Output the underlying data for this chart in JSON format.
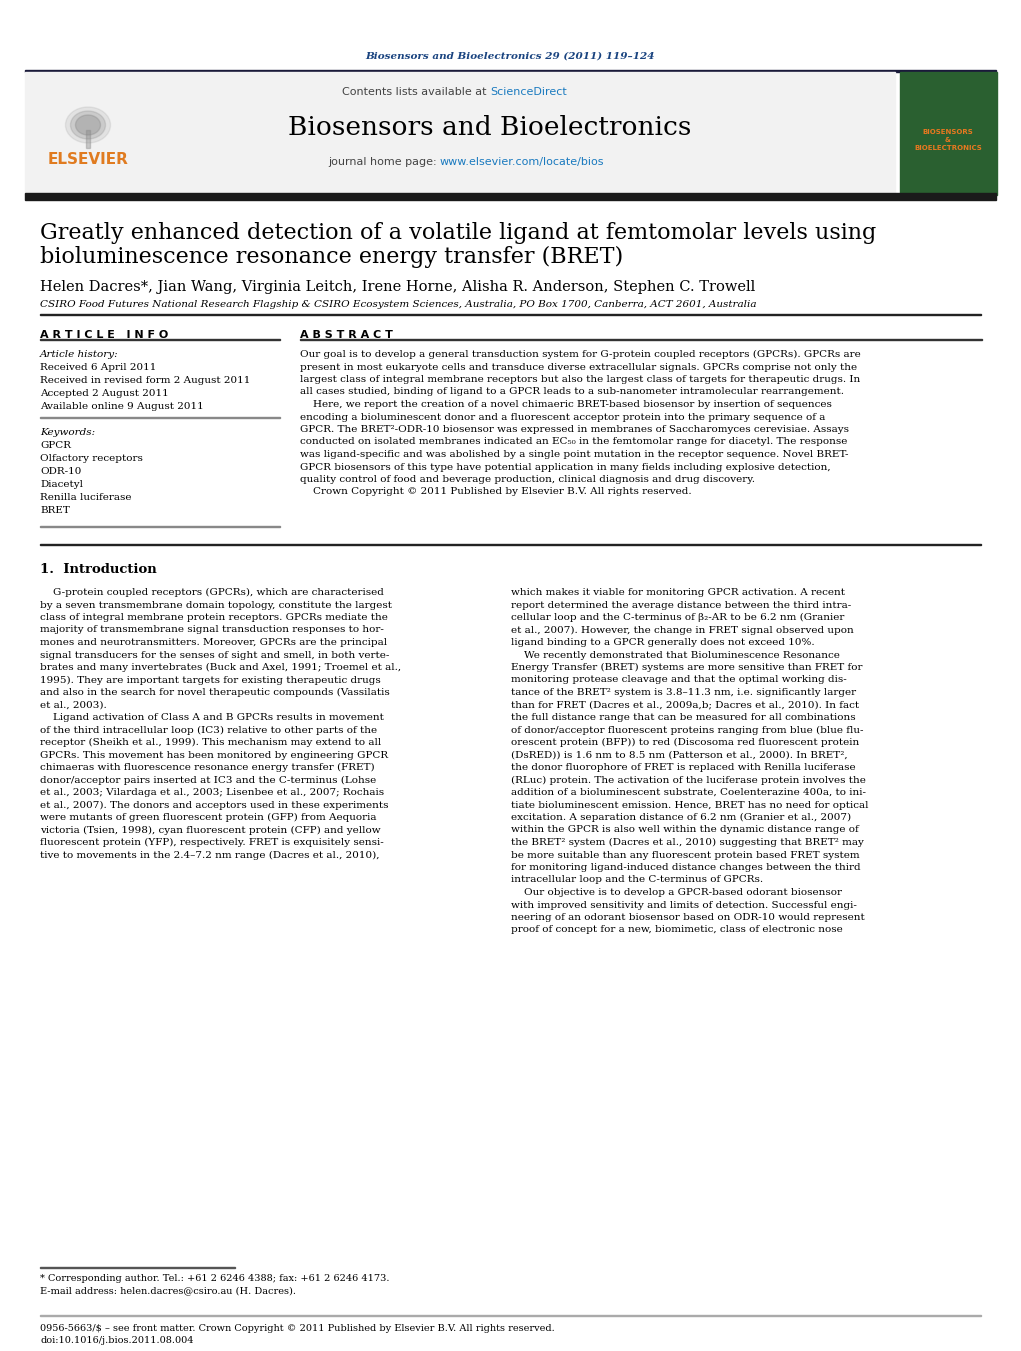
{
  "journal_ref": "Biosensors and Bioelectronics 29 (2011) 119–124",
  "journal_name": "Biosensors and Bioelectronics",
  "contents_text": "Contents lists available at ScienceDirect",
  "title_line1": "Greatly enhanced detection of a volatile ligand at femtomolar levels using",
  "title_line2": "bioluminescence resonance energy transfer (BRET)",
  "authors": "Helen Dacres*, Jian Wang, Virginia Leitch, Irene Horne, Alisha R. Anderson, Stephen C. Trowell",
  "affiliation": "CSIRO Food Futures National Research Flagship & CSIRO Ecosystem Sciences, Australia, PO Box 1700, Canberra, ACT 2601, Australia",
  "article_info_header": "A R T I C L E   I N F O",
  "abstract_header": "A B S T R A C T",
  "article_history_label": "Article history:",
  "received": "Received 6 April 2011",
  "received_revised": "Received in revised form 2 August 2011",
  "accepted": "Accepted 2 August 2011",
  "available_online": "Available online 9 August 2011",
  "keywords_label": "Keywords:",
  "keywords": [
    "GPCR",
    "Olfactory receptors",
    "ODR-10",
    "Diacetyl",
    "Renilla luciferase",
    "BRET"
  ],
  "section1_title": "1.  Introduction",
  "footnote1": "* Corresponding author. Tel.: +61 2 6246 4388; fax: +61 2 6246 4173.",
  "footnote2": "E-mail address: helen.dacres@csiro.au (H. Dacres).",
  "footer1": "0956-5663/$ – see front matter. Crown Copyright © 2011 Published by Elsevier B.V. All rights reserved.",
  "footer2": "doi:10.1016/j.bios.2011.08.004",
  "bg_color": "#ffffff",
  "journal_ref_color": "#1a4480",
  "elsevier_color": "#e07b20",
  "sciencedirect_color": "#1a7abf",
  "link_color": "#1a7abf",
  "abstract_lines": [
    "Our goal is to develop a general transduction system for G-protein coupled receptors (GPCRs). GPCRs are",
    "present in most eukaryote cells and transduce diverse extracellular signals. GPCRs comprise not only the",
    "largest class of integral membrane receptors but also the largest class of targets for therapeutic drugs. In",
    "all cases studied, binding of ligand to a GPCR leads to a sub-nanometer intramolecular rearrangement.",
    "    Here, we report the creation of a novel chimaeric BRET-based biosensor by insertion of sequences",
    "encoding a bioluminescent donor and a fluorescent acceptor protein into the primary sequence of a",
    "GPCR. The BRET²-ODR-10 biosensor was expressed in membranes of Saccharomyces cerevisiae. Assays",
    "conducted on isolated membranes indicated an EC₅₀ in the femtomolar range for diacetyl. The response",
    "was ligand-specific and was abolished by a single point mutation in the receptor sequence. Novel BRET-",
    "GPCR biosensors of this type have potential application in many fields including explosive detection,",
    "quality control of food and beverage production, clinical diagnosis and drug discovery.",
    "    Crown Copyright © 2011 Published by Elsevier B.V. All rights reserved."
  ],
  "intro_left_lines": [
    "    G-protein coupled receptors (GPCRs), which are characterised",
    "by a seven transmembrane domain topology, constitute the largest",
    "class of integral membrane protein receptors. GPCRs mediate the",
    "majority of transmembrane signal transduction responses to hor-",
    "mones and neurotransmitters. Moreover, GPCRs are the principal",
    "signal transducers for the senses of sight and smell, in both verte-",
    "brates and many invertebrates (Buck and Axel, 1991; Troemel et al.,",
    "1995). They are important targets for existing therapeutic drugs",
    "and also in the search for novel therapeutic compounds (Vassilatis",
    "et al., 2003).",
    "    Ligand activation of Class A and B GPCRs results in movement",
    "of the third intracellular loop (IC3) relative to other parts of the",
    "receptor (Sheikh et al., 1999). This mechanism may extend to all",
    "GPCRs. This movement has been monitored by engineering GPCR",
    "chimaeras with fluorescence resonance energy transfer (FRET)",
    "donor/acceptor pairs inserted at IC3 and the C-terminus (Lohse",
    "et al., 2003; Vilardaga et al., 2003; Lisenbee et al., 2007; Rochais",
    "et al., 2007). The donors and acceptors used in these experiments",
    "were mutants of green fluorescent protein (GFP) from Aequoria",
    "victoria (Tsien, 1998), cyan fluorescent protein (CFP) and yellow",
    "fluorescent protein (YFP), respectively. FRET is exquisitely sensi-",
    "tive to movements in the 2.4–7.2 nm range (Dacres et al., 2010),"
  ],
  "intro_right_lines": [
    "which makes it viable for monitoring GPCR activation. A recent",
    "report determined the average distance between the third intra-",
    "cellular loop and the C-terminus of β₂-AR to be 6.2 nm (Granier",
    "et al., 2007). However, the change in FRET signal observed upon",
    "ligand binding to a GPCR generally does not exceed 10%.",
    "    We recently demonstrated that Bioluminescence Resonance",
    "Energy Transfer (BRET) systems are more sensitive than FRET for",
    "monitoring protease cleavage and that the optimal working dis-",
    "tance of the BRET² system is 3.8–11.3 nm, i.e. significantly larger",
    "than for FRET (Dacres et al., 2009a,b; Dacres et al., 2010). In fact",
    "the full distance range that can be measured for all combinations",
    "of donor/acceptor fluorescent proteins ranging from blue (blue flu-",
    "orescent protein (BFP)) to red (Discosoma red fluorescent protein",
    "(DsRED)) is 1.6 nm to 8.5 nm (Patterson et al., 2000). In BRET²,",
    "the donor fluorophore of FRET is replaced with Renilla luciferase",
    "(RLuc) protein. The activation of the luciferase protein involves the",
    "addition of a bioluminescent substrate, Coelenterazine 400a, to ini-",
    "tiate bioluminescent emission. Hence, BRET has no need for optical",
    "excitation. A separation distance of 6.2 nm (Granier et al., 2007)",
    "within the GPCR is also well within the dynamic distance range of",
    "the BRET² system (Dacres et al., 2010) suggesting that BRET² may",
    "be more suitable than any fluorescent protein based FRET system",
    "for monitoring ligand-induced distance changes between the third",
    "intracellular loop and the C-terminus of GPCRs.",
    "    Our objective is to develop a GPCR-based odorant biosensor",
    "with improved sensitivity and limits of detection. Successful engi-",
    "neering of an odorant biosensor based on ODR-10 would represent",
    "proof of concept for a new, biomimetic, class of electronic nose"
  ]
}
